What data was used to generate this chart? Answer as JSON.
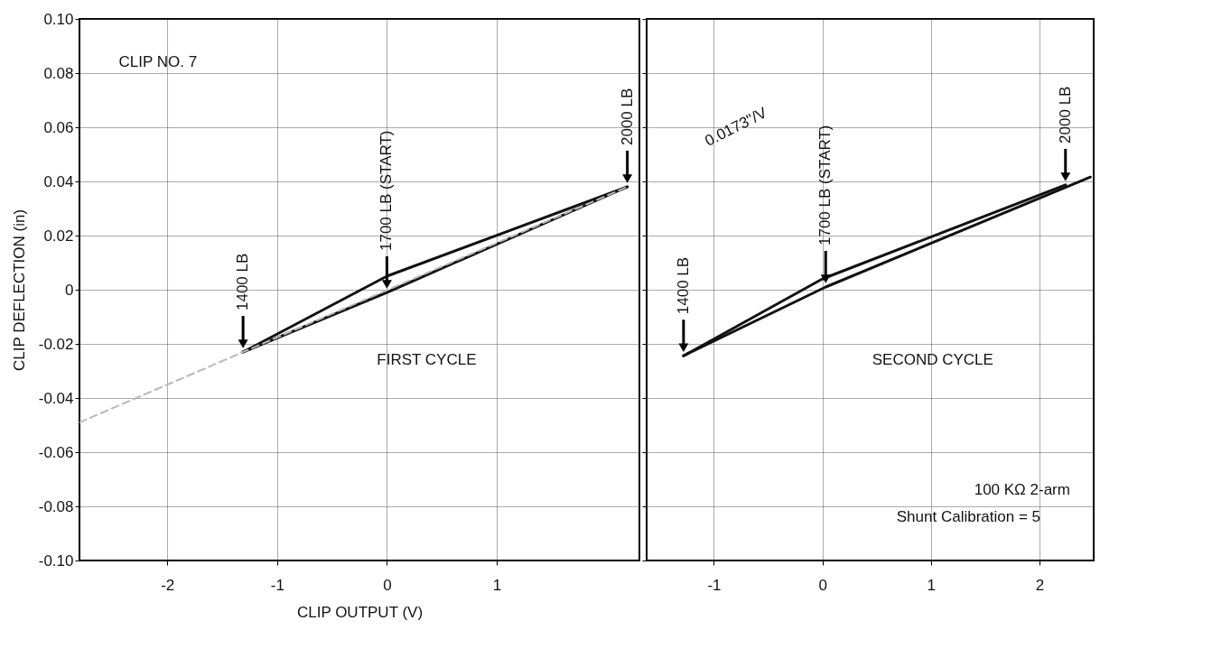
{
  "chart_data": [
    {
      "type": "line",
      "xlabel": "CLIP OUTPUT (V)",
      "ylabel": "CLIP DEFLECTION (in)",
      "xlim": [
        -2.8,
        2.3
      ],
      "xticks": [
        -2,
        -1,
        0,
        1
      ],
      "ylim": [
        -0.1,
        0.1
      ],
      "yticks": [
        {
          "value": 0.1,
          "label": "0.10"
        },
        0.08,
        0.06,
        0.04,
        0.02,
        0,
        -0.02,
        -0.04,
        -0.06,
        -0.08,
        {
          "value": -0.1,
          "label": "-0.10"
        }
      ],
      "grid": true,
      "series": [
        {
          "color": "#111111",
          "x": [
            -1.31,
            0,
            2.19
          ],
          "values": [
            -0.023,
            -0.001,
            0.038
          ]
        },
        {
          "color": "#111111",
          "x": [
            -1.31,
            0,
            2.19
          ],
          "values": [
            -0.023,
            0.005,
            0.038
          ]
        },
        {
          "type": "line",
          "color": "#b8b8b8",
          "line_style": "dashed",
          "x": [
            -2.8,
            2.19
          ],
          "values": [
            -0.049,
            0.038
          ]
        }
      ],
      "annotations": [
        "CLIP NO. 7",
        "FIRST CYCLE",
        {
          "text": "1400 LB",
          "x": -1.31,
          "y": -0.023
        },
        {
          "text": "1700 LB (START)",
          "x": 0,
          "y": -0.001
        },
        {
          "text": "2000 LB",
          "x": 2.19,
          "y": 0.038
        }
      ]
    },
    {
      "type": "line",
      "xlim": [
        -1.62,
        2.5
      ],
      "xticks": [
        -1,
        0,
        1,
        2
      ],
      "ylim": [
        -0.1,
        0.1
      ],
      "yticks": [
        0.1,
        0.08,
        0.06,
        0.04,
        0.02,
        0,
        -0.02,
        -0.04,
        -0.06,
        -0.08,
        -0.1
      ],
      "grid": true,
      "tick_labels": "x",
      "series": [
        {
          "color": "#111111",
          "x": [
            -1.28,
            0.03,
            2.47
          ],
          "values": [
            -0.0244,
            0.001,
            0.0416
          ]
        },
        {
          "color": "#111111",
          "x": [
            -1.28,
            0,
            2.24
          ],
          "values": [
            -0.0244,
            0.004,
            0.0387
          ]
        }
      ],
      "annotations": [
        "0.0173\"/V",
        "SECOND CYCLE",
        "100 KΩ 2-arm",
        "Shunt Calibration = 5",
        {
          "text": "1400 LB",
          "x": -1.28,
          "y": -0.0244
        },
        {
          "text": "1700 LB (START)",
          "x": 0.03,
          "y": 0.001
        },
        {
          "text": "2000 LB",
          "x": 2.24,
          "y": 0.0387
        }
      ]
    }
  ]
}
